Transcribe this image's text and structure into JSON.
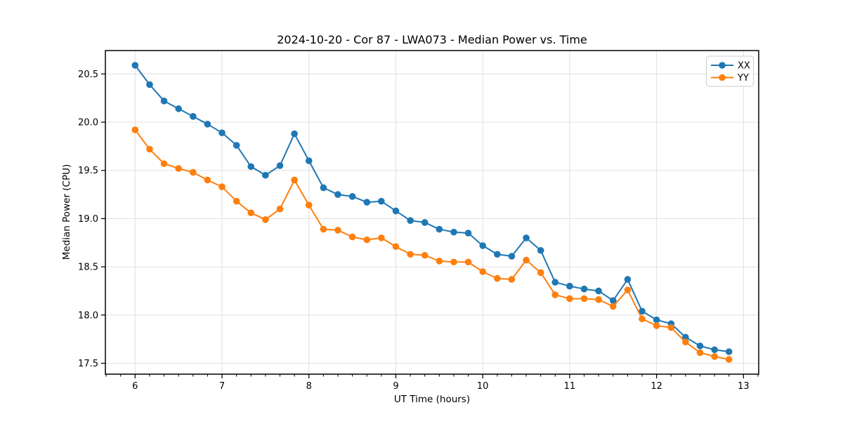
{
  "title": "2024-10-20 - Cor 87 - LWA073 - Median Power vs. Time",
  "colors": {
    "series_xx": "#1f77b4",
    "series_yy": "#ff7f0e",
    "grid": "#e0e0e0",
    "spine": "#000000",
    "legend_border": "#cccccc",
    "background": "#ffffff"
  },
  "legend": {
    "position": "upper right",
    "items": [
      {
        "label": "XX",
        "color": "#1f77b4"
      },
      {
        "label": "YY",
        "color": "#ff7f0e"
      }
    ]
  },
  "chart_data": {
    "type": "line",
    "title": "2024-10-20 - Cor 87 - LWA073 - Median Power vs. Time",
    "xlabel": "UT Time (hours)",
    "ylabel": "Median Power (CPU)",
    "xlim": [
      5.658,
      13.175
    ],
    "ylim": [
      17.387,
      20.743
    ],
    "xticks": [
      6,
      7,
      8,
      9,
      10,
      11,
      12,
      13
    ],
    "yticks": [
      17.5,
      18.0,
      18.5,
      19.0,
      19.5,
      20.0,
      20.5
    ],
    "x_minor_step": 0.166667,
    "grid": true,
    "legend_position": "upper right",
    "marker": "o",
    "x": [
      6.0,
      6.167,
      6.333,
      6.5,
      6.667,
      6.833,
      7.0,
      7.167,
      7.333,
      7.5,
      7.667,
      7.833,
      8.0,
      8.167,
      8.333,
      8.5,
      8.667,
      8.833,
      9.0,
      9.167,
      9.333,
      9.5,
      9.667,
      9.833,
      10.0,
      10.167,
      10.333,
      10.5,
      10.667,
      10.833,
      11.0,
      11.167,
      11.333,
      11.5,
      11.667,
      11.833,
      12.0,
      12.167,
      12.333,
      12.5,
      12.667,
      12.833
    ],
    "series": [
      {
        "name": "XX",
        "color": "#1f77b4",
        "values": [
          20.59,
          20.39,
          20.22,
          20.14,
          20.06,
          19.98,
          19.89,
          19.76,
          19.54,
          19.45,
          19.55,
          19.88,
          19.6,
          19.32,
          19.25,
          19.23,
          19.17,
          19.18,
          19.08,
          18.98,
          18.96,
          18.89,
          18.86,
          18.85,
          18.72,
          18.63,
          18.61,
          18.8,
          18.67,
          18.34,
          18.3,
          18.27,
          18.25,
          18.15,
          18.37,
          18.04,
          17.95,
          17.91,
          17.77,
          17.68,
          17.64,
          17.62
        ]
      },
      {
        "name": "YY",
        "color": "#ff7f0e",
        "values": [
          19.92,
          19.72,
          19.57,
          19.52,
          19.48,
          19.4,
          19.33,
          19.18,
          19.06,
          18.99,
          19.1,
          19.4,
          19.14,
          18.89,
          18.88,
          18.81,
          18.78,
          18.8,
          18.71,
          18.63,
          18.62,
          18.56,
          18.55,
          18.55,
          18.45,
          18.38,
          18.37,
          18.57,
          18.44,
          18.21,
          18.17,
          18.17,
          18.16,
          18.09,
          18.26,
          17.96,
          17.89,
          17.87,
          17.72,
          17.61,
          17.57,
          17.54
        ]
      }
    ]
  }
}
